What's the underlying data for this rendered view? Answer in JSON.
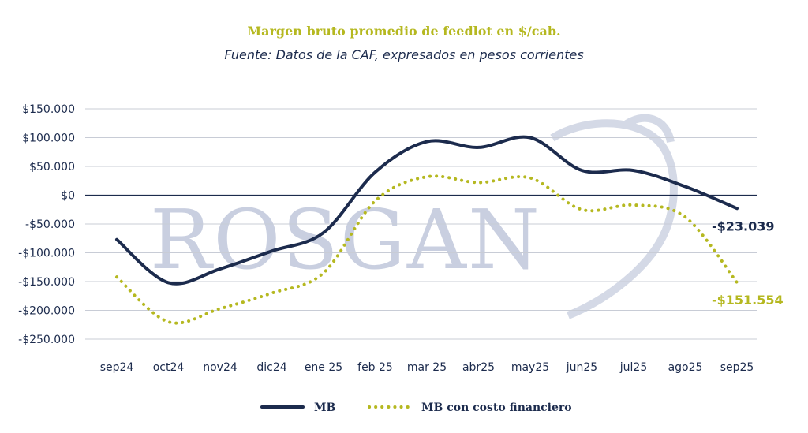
{
  "chart_data": {
    "type": "line",
    "title": "Margen bruto promedio de feedlot en $/cab.",
    "subtitle": "Fuente: Datos de la CAF, expresados en pesos corrientes",
    "categories": [
      "sep24",
      "oct24",
      "nov24",
      "dic24",
      "ene 25",
      "feb 25",
      "mar 25",
      "abr25",
      "may25",
      "jun25",
      "jul25",
      "ago25",
      "sep25"
    ],
    "ylim": [
      -250000,
      150000
    ],
    "y_ticks": [
      150000,
      100000,
      50000,
      0,
      -50000,
      -100000,
      -150000,
      -200000,
      -250000
    ],
    "y_tick_labels": [
      "$150.000",
      "$100.000",
      "$50.000",
      "$0",
      "-$50.000",
      "-$100.000",
      "-$150.000",
      "-$200.000",
      "-$250.000"
    ],
    "series": [
      {
        "name": "MB",
        "style": "solid",
        "color": "#1c2b4d",
        "values": [
          -77000,
          -152000,
          -128000,
          -97000,
          -65000,
          40000,
          93000,
          83000,
          100000,
          43000,
          43000,
          15000,
          -23039
        ],
        "end_label": "-$23.039"
      },
      {
        "name": "MB con costo financiero",
        "style": "dotted",
        "color": "#b5b820",
        "values": [
          -142000,
          -220000,
          -197000,
          -170000,
          -135000,
          -10000,
          32000,
          22000,
          30000,
          -25000,
          -17000,
          -38000,
          -151554
        ],
        "end_label": "-$151.554"
      }
    ],
    "legend": "bottom",
    "watermark": "ROSGAN"
  }
}
